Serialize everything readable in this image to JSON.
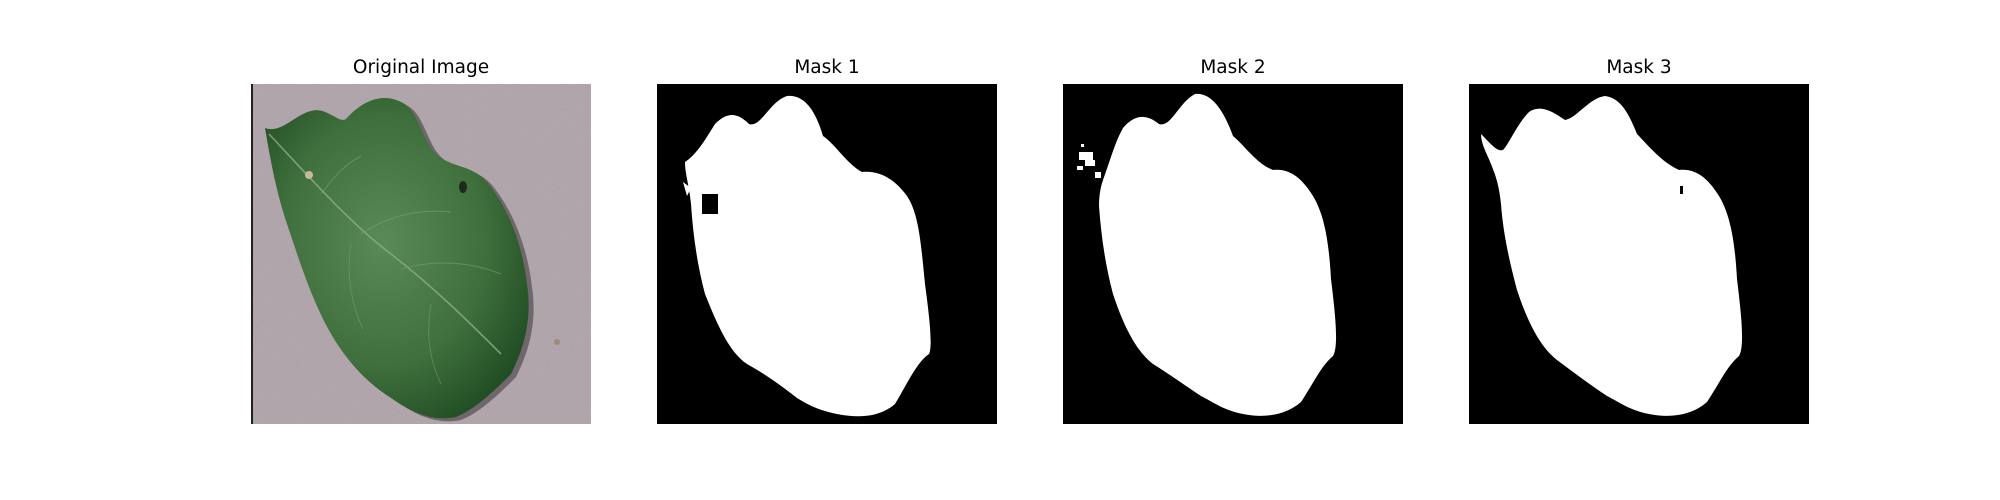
{
  "panels": [
    {
      "title": "Original Image"
    },
    {
      "title": "Mask 1"
    },
    {
      "title": "Mask 2"
    },
    {
      "title": "Mask 3"
    }
  ],
  "colors": {
    "background": "#ffffff",
    "mask_background": "#000000",
    "mask_foreground": "#ffffff",
    "leaf_green": "#3f6f3c",
    "paper_gray": "#b7acb2"
  }
}
